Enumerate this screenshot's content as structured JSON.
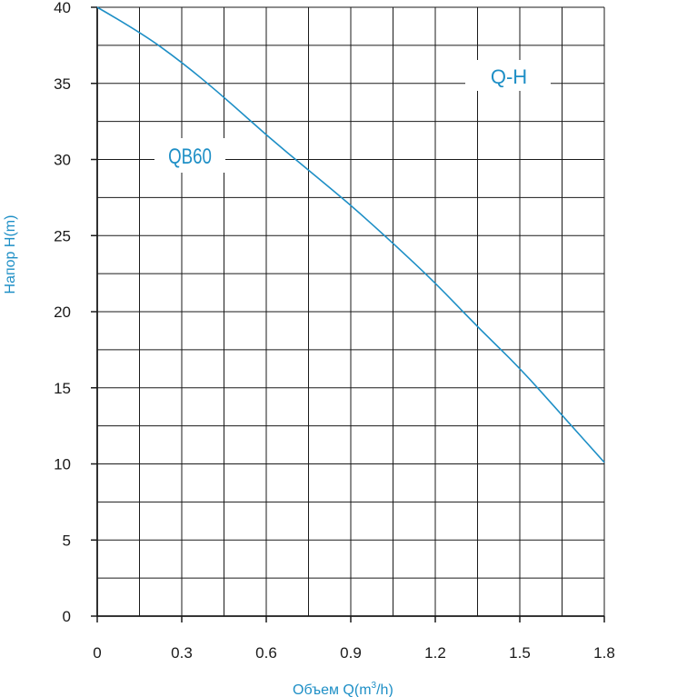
{
  "chart_data": {
    "type": "line",
    "xlabel_main": "Объем Q(m",
    "xlabel_sup": "3",
    "xlabel_end": "/h)",
    "ylabel": "Напор H(m)",
    "xlim": [
      0,
      1.8
    ],
    "ylim": [
      0,
      40
    ],
    "xticks": [
      "0",
      "0.3",
      "0.6",
      "0.9",
      "1.2",
      "1.5",
      "1.8"
    ],
    "yticks": [
      "0",
      "5",
      "10",
      "15",
      "20",
      "25",
      "30",
      "35",
      "40"
    ],
    "grid": true,
    "series": [
      {
        "name": "QB60",
        "x": [
          0,
          0.15,
          0.3,
          0.45,
          0.6,
          0.75,
          0.9,
          1.05,
          1.2,
          1.35,
          1.5,
          1.65,
          1.8
        ],
        "y": [
          40,
          38.4,
          36.4,
          34.1,
          31.6,
          29.3,
          27.0,
          24.5,
          21.9,
          19.0,
          16.3,
          13.2,
          10.1
        ]
      }
    ],
    "annotations": {
      "curve_type": "Q-H",
      "model": "QB60"
    },
    "colors": {
      "curve": "#1e8fc6",
      "grid": "#1a1a1a",
      "text": "#1e8fc6"
    }
  }
}
